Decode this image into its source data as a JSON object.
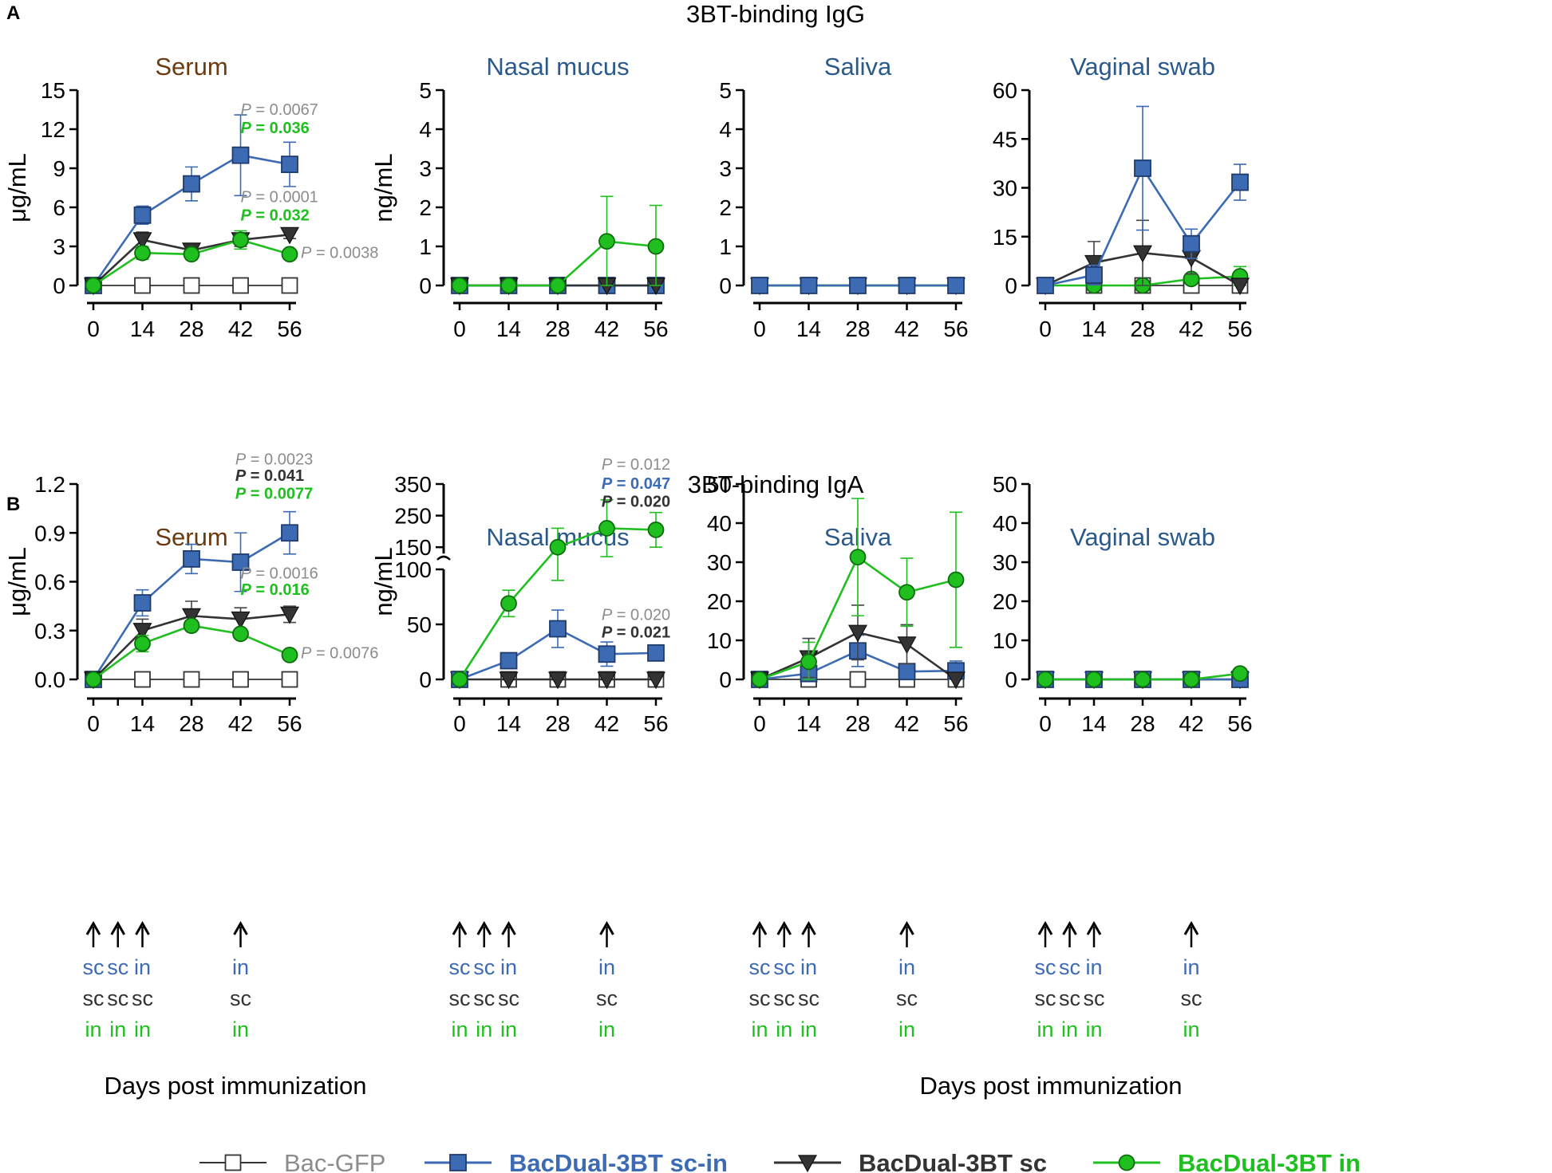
{
  "panel_labels": [
    "A",
    "B"
  ],
  "section_titles": [
    "3BT-binding IgG",
    "3BT-binding IgA"
  ],
  "x_axis_label": "Days post immunization",
  "colors": {
    "bacgfp": "#8c8c8c",
    "sc_in": "#3d6bb3",
    "sc": "#333333",
    "in": "#1fbf1f",
    "serum_title": "#6b3a0e",
    "mucosal_title": "#2b5a8a",
    "grey_p": "#8c8c8c"
  },
  "legend": [
    {
      "key": "bacgfp",
      "label": "Bac-GFP"
    },
    {
      "key": "sc_in",
      "label": "BacDual-3BT sc-in"
    },
    {
      "key": "sc",
      "label": "BacDual-3BT sc"
    },
    {
      "key": "in",
      "label": "BacDual-3BT in"
    }
  ],
  "immunization": {
    "arrow_days": [
      0,
      7,
      14,
      42
    ],
    "rows": [
      {
        "key": "sc_in",
        "labels": [
          "sc",
          "sc",
          "in",
          "in"
        ]
      },
      {
        "key": "sc",
        "labels": [
          "sc",
          "sc",
          "sc",
          "sc"
        ]
      },
      {
        "key": "in",
        "labels": [
          "in",
          "in",
          "in",
          "in"
        ]
      }
    ]
  },
  "chart_data": [
    {
      "id": "A-serum",
      "type": "line",
      "row": "A",
      "title": "Serum",
      "ylabel": "μg/mL",
      "x": [
        0,
        14,
        28,
        42,
        56
      ],
      "ylim": [
        0,
        15
      ],
      "yticks": [
        0,
        3,
        6,
        9,
        12,
        15
      ],
      "ytick_labels": [
        "0",
        "3",
        "6",
        "9",
        "12",
        "15"
      ],
      "series": [
        {
          "key": "bacgfp",
          "name": "Bac-GFP",
          "values": [
            0,
            0,
            0,
            0,
            0
          ],
          "errors": [
            0,
            0,
            0,
            0,
            0
          ]
        },
        {
          "key": "sc_in",
          "name": "BacDual-3BT sc-in",
          "values": [
            0,
            5.4,
            7.8,
            10.0,
            9.3
          ],
          "errors": [
            0,
            0.7,
            1.3,
            3.1,
            1.7
          ]
        },
        {
          "key": "sc",
          "name": "BacDual-3BT sc",
          "values": [
            0,
            3.5,
            2.7,
            3.5,
            3.9
          ],
          "errors": [
            0,
            0.6,
            0.4,
            0.5,
            0.3
          ]
        },
        {
          "key": "in",
          "name": "BacDual-3BT in",
          "values": [
            0,
            2.5,
            2.4,
            3.5,
            2.4
          ],
          "errors": [
            0,
            0.5,
            0.4,
            0.7,
            0.3
          ]
        }
      ],
      "annotations": [
        {
          "text": "P = 0.0067",
          "color": "grey",
          "x": 42,
          "y": 13.1
        },
        {
          "text": "P = 0.036",
          "color": "in",
          "x": 42,
          "y": 11.7
        },
        {
          "text": "P = 0.0001",
          "color": "grey",
          "x": 42,
          "y": 6.4
        },
        {
          "text": "P = 0.032",
          "color": "in",
          "x": 42,
          "y": 5.0
        },
        {
          "text": "P = 0.0038",
          "color": "grey",
          "x": 59.2,
          "y": 2.1
        }
      ]
    },
    {
      "id": "A-nasal",
      "type": "line",
      "row": "A",
      "title": "Nasal mucus",
      "ylabel": "ng/mL",
      "x": [
        0,
        14,
        28,
        42,
        56
      ],
      "ylim": [
        0,
        5
      ],
      "yticks": [
        0,
        1,
        2,
        3,
        4,
        5
      ],
      "ytick_labels": [
        "0",
        "1",
        "2",
        "3",
        "4",
        "5"
      ],
      "series": [
        {
          "key": "bacgfp",
          "name": "Bac-GFP",
          "values": [
            0,
            0,
            0,
            0,
            0
          ],
          "errors": [
            0,
            0,
            0,
            0,
            0
          ]
        },
        {
          "key": "sc_in",
          "name": "BacDual-3BT sc-in",
          "values": [
            0,
            0,
            0,
            0,
            0
          ],
          "errors": [
            0,
            0,
            0,
            0,
            0
          ]
        },
        {
          "key": "sc",
          "name": "BacDual-3BT sc",
          "values": [
            0,
            0,
            0,
            0,
            0
          ],
          "errors": [
            0,
            0,
            0,
            0,
            0
          ]
        },
        {
          "key": "in",
          "name": "BacDual-3BT in",
          "values": [
            0,
            0,
            0,
            1.13,
            1.0
          ],
          "errors": [
            0,
            0,
            0,
            1.15,
            1.05
          ]
        }
      ],
      "annotations": []
    },
    {
      "id": "A-saliva",
      "type": "line",
      "row": "A",
      "title": "Saliva",
      "ylabel": "",
      "x": [
        0,
        14,
        28,
        42,
        56
      ],
      "ylim": [
        0,
        5
      ],
      "yticks": [
        0,
        1,
        2,
        3,
        4,
        5
      ],
      "ytick_labels": [
        "0",
        "1",
        "2",
        "3",
        "4",
        "5"
      ],
      "series": [
        {
          "key": "bacgfp",
          "name": "Bac-GFP",
          "values": [
            0,
            0,
            0,
            0,
            0
          ],
          "errors": [
            0,
            0,
            0,
            0,
            0
          ]
        },
        {
          "key": "sc",
          "name": "BacDual-3BT sc",
          "values": [
            0,
            0,
            0,
            0,
            0
          ],
          "errors": [
            0,
            0,
            0,
            0,
            0
          ]
        },
        {
          "key": "in",
          "name": "BacDual-3BT in",
          "values": [
            0,
            0,
            0,
            0,
            0
          ],
          "errors": [
            0,
            0,
            0,
            0,
            0
          ]
        },
        {
          "key": "sc_in",
          "name": "BacDual-3BT sc-in",
          "values": [
            0,
            0,
            0,
            0,
            0
          ],
          "errors": [
            0,
            0,
            0,
            0,
            0
          ]
        }
      ],
      "annotations": []
    },
    {
      "id": "A-vaginal",
      "type": "line",
      "row": "A",
      "title": "Vaginal swab",
      "ylabel": "",
      "x": [
        0,
        14,
        28,
        42,
        56
      ],
      "ylim": [
        0,
        60
      ],
      "yticks": [
        0,
        15,
        30,
        45,
        60
      ],
      "ytick_labels": [
        "0",
        "15",
        "30",
        "45",
        "60"
      ],
      "series": [
        {
          "key": "bacgfp",
          "name": "Bac-GFP",
          "values": [
            0,
            0,
            0,
            0,
            0
          ],
          "errors": [
            0,
            0,
            0,
            0,
            0
          ]
        },
        {
          "key": "in",
          "name": "BacDual-3BT in",
          "values": [
            0,
            0,
            0,
            2,
            2.8
          ],
          "errors": [
            0,
            0,
            0,
            1,
            3
          ]
        },
        {
          "key": "sc",
          "name": "BacDual-3BT sc",
          "values": [
            0,
            7,
            10,
            8.5,
            0
          ],
          "errors": [
            1.5,
            6.5,
            10,
            5,
            0
          ]
        },
        {
          "key": "sc_in",
          "name": "BacDual-3BT sc-in",
          "values": [
            0,
            3.2,
            36,
            12.8,
            31.7
          ],
          "errors": [
            0,
            3,
            19,
            4.5,
            5.5
          ]
        }
      ],
      "annotations": []
    },
    {
      "id": "B-serum",
      "type": "line",
      "row": "B",
      "title": "Serum",
      "ylabel": "μg/mL",
      "x": [
        0,
        14,
        28,
        42,
        56
      ],
      "ylim": [
        0,
        1.2
      ],
      "yticks": [
        0,
        0.3,
        0.6,
        0.9,
        1.2
      ],
      "ytick_labels": [
        "0.0",
        "0.3",
        "0.6",
        "0.9",
        "1.2"
      ],
      "series": [
        {
          "key": "bacgfp",
          "name": "Bac-GFP",
          "values": [
            0,
            0,
            0,
            0,
            0
          ],
          "errors": [
            0,
            0,
            0,
            0,
            0
          ]
        },
        {
          "key": "sc_in",
          "name": "BacDual-3BT sc-in",
          "values": [
            0,
            0.47,
            0.74,
            0.72,
            0.9
          ],
          "errors": [
            0,
            0.08,
            0.09,
            0.18,
            0.13
          ]
        },
        {
          "key": "sc",
          "name": "BacDual-3BT sc",
          "values": [
            0,
            0.3,
            0.39,
            0.37,
            0.4
          ],
          "errors": [
            0,
            0.07,
            0.09,
            0.07,
            0.05
          ]
        },
        {
          "key": "in",
          "name": "BacDual-3BT in",
          "values": [
            0,
            0.22,
            0.33,
            0.28,
            0.15
          ],
          "errors": [
            0,
            0.05,
            0.03,
            0.03,
            0.02
          ]
        }
      ],
      "annotations": [
        {
          "text": "P = 0.0023",
          "color": "grey",
          "x": 40.5,
          "y": 1.32
        },
        {
          "text": "P = 0.041",
          "color": "sc",
          "x": 40.5,
          "y": 1.22
        },
        {
          "text": "P = 0.0077",
          "color": "in",
          "x": 40.5,
          "y": 1.11
        },
        {
          "text": "P = 0.0016",
          "color": "grey",
          "x": 42,
          "y": 0.62
        },
        {
          "text": "P = 0.016",
          "color": "in",
          "x": 42,
          "y": 0.52
        },
        {
          "text": "P = 0.0076",
          "color": "grey",
          "x": 59.2,
          "y": 0.13
        }
      ]
    },
    {
      "id": "B-nasal",
      "type": "line",
      "row": "B",
      "title": "Nasal mucus",
      "ylabel": "ng/mL",
      "broken_axis": true,
      "x": [
        0,
        14,
        28,
        42,
        56
      ],
      "ylim": [
        0,
        350
      ],
      "yticks": [
        0,
        50,
        100,
        150,
        250,
        350
      ],
      "ytick_labels": [
        "0",
        "50",
        "100",
        "150",
        "250",
        "350"
      ],
      "series": [
        {
          "key": "bacgfp",
          "name": "Bac-GFP",
          "values": [
            0,
            0,
            0,
            0,
            0
          ],
          "errors": [
            0,
            0,
            0,
            0,
            0
          ]
        },
        {
          "key": "sc",
          "name": "BacDual-3BT sc",
          "values": [
            0,
            0,
            0,
            0,
            0
          ],
          "errors": [
            0,
            0,
            0,
            0,
            0
          ]
        },
        {
          "key": "sc_in",
          "name": "BacDual-3BT sc-in",
          "values": [
            0,
            17,
            46,
            23,
            24
          ],
          "errors": [
            0,
            0,
            17,
            11,
            0
          ]
        },
        {
          "key": "in",
          "name": "BacDual-3BT in",
          "values": [
            0,
            69,
            150,
            210,
            205
          ],
          "errors": [
            0,
            12,
            60,
            90,
            55
          ]
        }
      ],
      "annotations": [
        {
          "text": "P = 0.012",
          "color": "grey",
          "x": 40.5,
          "y": 395
        },
        {
          "text": "P = 0.047",
          "color": "sc_in",
          "x": 40.5,
          "y": 335
        },
        {
          "text": "P = 0.020",
          "color": "sc",
          "x": 40.5,
          "y": 278
        },
        {
          "text": "P = 0.020",
          "color": "grey",
          "x": 40.5,
          "y": 54
        },
        {
          "text": "P = 0.021",
          "color": "sc",
          "x": 40.5,
          "y": 38
        }
      ]
    },
    {
      "id": "B-saliva",
      "type": "line",
      "row": "B",
      "title": "Saliva",
      "ylabel": "",
      "x": [
        0,
        14,
        28,
        42,
        56
      ],
      "ylim": [
        0,
        50
      ],
      "yticks": [
        0,
        10,
        20,
        30,
        40,
        50
      ],
      "ytick_labels": [
        "0",
        "10",
        "20",
        "30",
        "40",
        "50"
      ],
      "series": [
        {
          "key": "bacgfp",
          "name": "Bac-GFP",
          "values": [
            0,
            0,
            0,
            0,
            0
          ],
          "errors": [
            0,
            0,
            0,
            0,
            0
          ]
        },
        {
          "key": "sc_in",
          "name": "BacDual-3BT sc-in",
          "values": [
            0,
            1.5,
            7.3,
            2.0,
            2.2
          ],
          "errors": [
            0,
            1.5,
            4,
            1.5,
            2.5
          ]
        },
        {
          "key": "sc",
          "name": "BacDual-3BT sc",
          "values": [
            0,
            5.5,
            12,
            9,
            0
          ],
          "errors": [
            0,
            5,
            7,
            5,
            0
          ]
        },
        {
          "key": "in",
          "name": "BacDual-3BT in",
          "values": [
            0,
            4.5,
            31.3,
            22.3,
            25.5
          ],
          "errors": [
            0,
            5,
            15,
            8.7,
            17.3
          ]
        }
      ],
      "annotations": []
    },
    {
      "id": "B-vaginal",
      "type": "line",
      "row": "B",
      "title": "Vaginal swab",
      "ylabel": "",
      "x": [
        0,
        14,
        28,
        42,
        56
      ],
      "ylim": [
        0,
        50
      ],
      "yticks": [
        0,
        10,
        20,
        30,
        40,
        50
      ],
      "ytick_labels": [
        "0",
        "10",
        "20",
        "30",
        "40",
        "50"
      ],
      "series": [
        {
          "key": "bacgfp",
          "name": "Bac-GFP",
          "values": [
            0,
            0,
            0,
            0,
            0
          ],
          "errors": [
            0,
            0,
            0,
            0,
            0
          ]
        },
        {
          "key": "sc",
          "name": "BacDual-3BT sc",
          "values": [
            0,
            0,
            0,
            0,
            0
          ],
          "errors": [
            0,
            0,
            0,
            0,
            0
          ]
        },
        {
          "key": "sc_in",
          "name": "BacDual-3BT sc-in",
          "values": [
            0,
            0,
            0,
            0,
            0
          ],
          "errors": [
            0,
            0,
            0,
            0,
            0
          ]
        },
        {
          "key": "in",
          "name": "BacDual-3BT in",
          "values": [
            0,
            0,
            0,
            0,
            1.5
          ],
          "errors": [
            0,
            0,
            0,
            0,
            1.2
          ]
        }
      ],
      "annotations": []
    }
  ]
}
